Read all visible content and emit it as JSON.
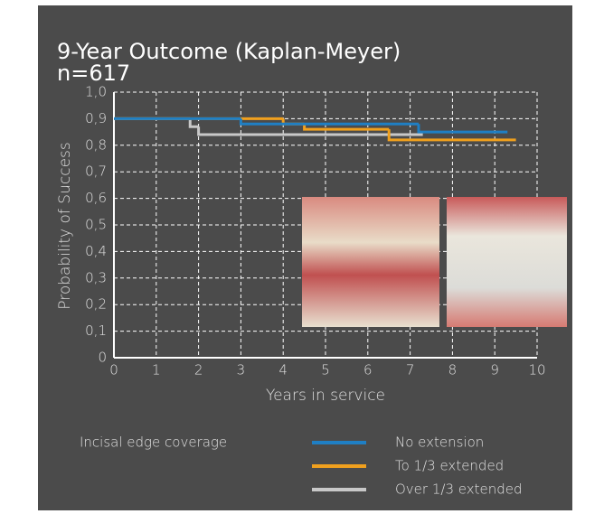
{
  "chart_data": {
    "type": "step",
    "title": "9-Year Outcome (Kaplan-Meyer)",
    "subtitle": "n=617",
    "xlabel": "Years in service",
    "ylabel": "Probability of Success",
    "xlim": [
      0,
      10
    ],
    "xticks": [
      0,
      1,
      2,
      3,
      4,
      5,
      6,
      7,
      8,
      9,
      10
    ],
    "ylim": [
      0,
      1
    ],
    "yticks": [
      0,
      {
        "value": 0.1,
        "label": "0,1"
      },
      {
        "value": 0.2,
        "label": "0,2"
      },
      {
        "value": 0.3,
        "label": "0,3"
      },
      {
        "value": 0.4,
        "label": "0,4"
      },
      {
        "value": 0.5,
        "label": "0,5"
      },
      {
        "value": 0.6,
        "label": "0,6"
      },
      {
        "value": 0.7,
        "label": "0,7"
      },
      {
        "value": 0.8,
        "label": "0,8"
      },
      {
        "value": 0.9,
        "label": "0,9"
      },
      {
        "value": 1,
        "label": "1,0"
      }
    ],
    "grid": true,
    "legend_title": "Incisal edge coverage",
    "series": [
      {
        "name": "No extension",
        "color": "#1f7fc4",
        "x": [
          0,
          3,
          7.2,
          9.3
        ],
        "values": [
          0.9,
          0.88,
          0.85,
          0.85
        ]
      },
      {
        "name": "To 1/3 extended",
        "color": "#f0a01e",
        "x": [
          0,
          4,
          4.5,
          6.5,
          9.5
        ],
        "values": [
          0.9,
          0.88,
          0.86,
          0.82,
          0.82
        ]
      },
      {
        "name": "Over 1/3 extended",
        "color": "#c8c8c8",
        "x": [
          0,
          1.8,
          2,
          7.3
        ],
        "values": [
          0.9,
          0.87,
          0.84,
          0.84
        ]
      }
    ]
  }
}
